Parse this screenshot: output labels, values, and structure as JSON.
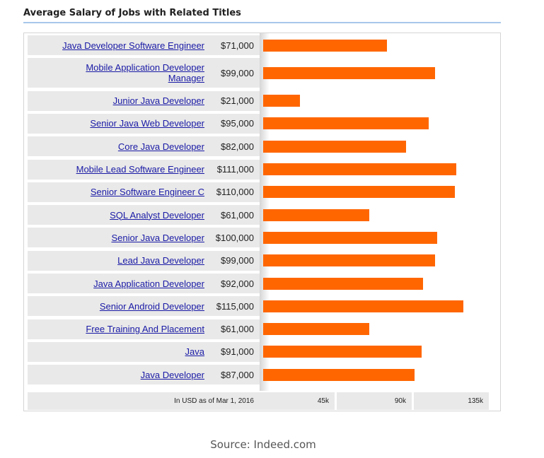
{
  "chart_data": {
    "type": "bar",
    "title": "Average Salary of Jobs with Related Titles",
    "categories": [
      "Java Developer Software Engineer",
      "Mobile Application Developer Manager",
      "Junior Java Developer",
      "Senior Java Web Developer",
      "Core Java Developer",
      "Mobile Lead Software Engineer",
      "Senior Software Engineer C",
      "SQL Analyst Developer",
      "Senior Java Developer",
      "Lead Java Developer",
      "Java Application Developer",
      "Senior Android Developer",
      "Free Training And Placement",
      "Java",
      "Java Developer"
    ],
    "values": [
      71000,
      99000,
      21000,
      95000,
      82000,
      111000,
      110000,
      61000,
      100000,
      99000,
      92000,
      115000,
      61000,
      91000,
      87000
    ],
    "value_labels": [
      "$71,000",
      "$99,000",
      "$21,000",
      "$95,000",
      "$82,000",
      "$111,000",
      "$110,000",
      "$61,000",
      "$100,000",
      "$99,000",
      "$92,000",
      "$115,000",
      "$61,000",
      "$91,000",
      "$87,000"
    ],
    "x_ticks": [
      "45k",
      "90k",
      "135k"
    ],
    "xlim": [
      0,
      135000
    ],
    "orientation": "horizontal",
    "bar_color": "#ff6600",
    "note": "In USD as of Mar 1, 2016"
  },
  "source": "Source: Indeed.com"
}
